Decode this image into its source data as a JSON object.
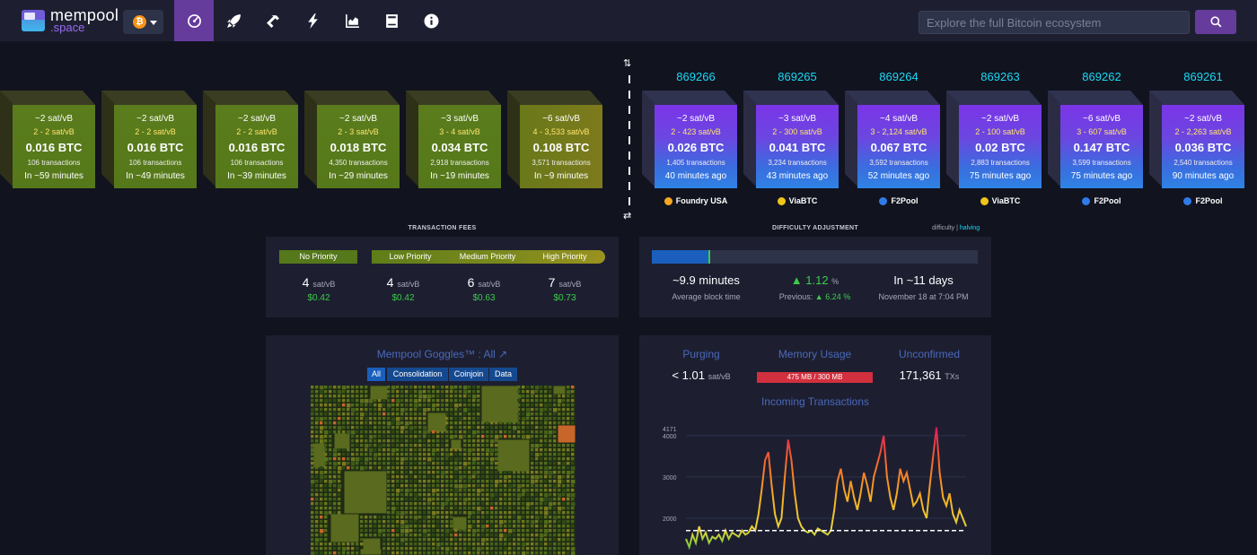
{
  "nav": {
    "logo_name": "mempool",
    "logo_sub": ".space",
    "network_symbol": "₿",
    "icons": [
      "dashboard-icon",
      "rocket-icon",
      "hammer-icon",
      "lightning-icon",
      "chart-icon",
      "docs-icon",
      "info-icon"
    ],
    "search_placeholder": "Explore the full Bitcoin ecosystem"
  },
  "mempool_blocks": [
    {
      "fee": "~2 sat/vB",
      "range": "2 - 2 sat/vB",
      "size": "0.016 BTC",
      "txs": "106 transactions",
      "eta": "In ~59 minutes"
    },
    {
      "fee": "~2 sat/vB",
      "range": "2 - 2 sat/vB",
      "size": "0.016 BTC",
      "txs": "106 transactions",
      "eta": "In ~49 minutes"
    },
    {
      "fee": "~2 sat/vB",
      "range": "2 - 2 sat/vB",
      "size": "0.016 BTC",
      "txs": "106 transactions",
      "eta": "In ~39 minutes"
    },
    {
      "fee": "~2 sat/vB",
      "range": "2 - 3 sat/vB",
      "size": "0.018 BTC",
      "txs": "4,350 transactions",
      "eta": "In ~29 minutes"
    },
    {
      "fee": "~3 sat/vB",
      "range": "3 - 4 sat/vB",
      "size": "0.034 BTC",
      "txs": "2,918 transactions",
      "eta": "In ~19 minutes"
    },
    {
      "fee": "~6 sat/vB",
      "range": "4 - 3,533 sat/vB",
      "size": "0.108 BTC",
      "txs": "3,571 transactions",
      "eta": "In ~9 minutes"
    }
  ],
  "mined_blocks": [
    {
      "height": "869266",
      "fee": "~2 sat/vB",
      "range": "2 - 423 sat/vB",
      "size": "0.026 BTC",
      "txs": "1,405 transactions",
      "ago": "40 minutes ago",
      "pool": "Foundry USA",
      "pool_color": "#f5a623"
    },
    {
      "height": "869265",
      "fee": "~3 sat/vB",
      "range": "2 - 300 sat/vB",
      "size": "0.041 BTC",
      "txs": "3,234 transactions",
      "ago": "43 minutes ago",
      "pool": "ViaBTC",
      "pool_color": "#f0c419"
    },
    {
      "height": "869264",
      "fee": "~4 sat/vB",
      "range": "3 - 2,124 sat/vB",
      "size": "0.067 BTC",
      "txs": "3,592 transactions",
      "ago": "52 minutes ago",
      "pool": "F2Pool",
      "pool_color": "#2f7be8"
    },
    {
      "height": "869263",
      "fee": "~2 sat/vB",
      "range": "2 - 100 sat/vB",
      "size": "0.02 BTC",
      "txs": "2,883 transactions",
      "ago": "75 minutes ago",
      "pool": "ViaBTC",
      "pool_color": "#f0c419"
    },
    {
      "height": "869262",
      "fee": "~6 sat/vB",
      "range": "3 - 607 sat/vB",
      "size": "0.147 BTC",
      "txs": "3,599 transactions",
      "ago": "75 minutes ago",
      "pool": "F2Pool",
      "pool_color": "#2f7be8"
    },
    {
      "height": "869261",
      "fee": "~2 sat/vB",
      "range": "2 - 2,263 sat/vB",
      "size": "0.036 BTC",
      "txs": "2,540 transactions",
      "ago": "90 minutes ago",
      "pool": "F2Pool",
      "pool_color": "#2f7be8"
    }
  ],
  "fees": {
    "title": "TRANSACTION FEES",
    "items": [
      {
        "label": "No Priority",
        "value": "4",
        "unit": "sat/vB",
        "usd": "$0.42"
      },
      {
        "label": "Low Priority",
        "value": "4",
        "unit": "sat/vB",
        "usd": "$0.42"
      },
      {
        "label": "Medium Priority",
        "value": "6",
        "unit": "sat/vB",
        "usd": "$0.63"
      },
      {
        "label": "High Priority",
        "value": "7",
        "unit": "sat/vB",
        "usd": "$0.73"
      }
    ]
  },
  "difficulty": {
    "title": "DIFFICULTY ADJUSTMENT",
    "toggle_a": "difficulty",
    "toggle_sep": "|",
    "toggle_b": "halving",
    "progress": 0.18,
    "avg_time": "~9.9 minutes",
    "avg_label": "Average block time",
    "change": "1.12",
    "change_unit": "%",
    "previous_label": "Previous:",
    "previous": "6.24",
    "eta": "In ~11 days",
    "eta_date": "November 18 at 7:04 PM"
  },
  "goggles": {
    "title": "Mempool Goggles™ : All",
    "tabs": [
      "All",
      "Consolidation",
      "Coinjoin",
      "Data"
    ]
  },
  "stats": {
    "purging_label": "Purging",
    "purging_value": "< 1.01",
    "purging_unit": "sat/vB",
    "memory_label": "Memory Usage",
    "memory_value": "475 MB / 300 MB",
    "unconfirmed_label": "Unconfirmed",
    "unconfirmed_value": "171,361",
    "unconfirmed_unit": "TXs",
    "incoming_title": "Incoming Transactions"
  },
  "chart_data": {
    "type": "line",
    "title": "Incoming Transactions",
    "ylim": [
      0,
      4171
    ],
    "y_ticks": [
      "4171",
      "4000",
      "3000",
      "2000"
    ],
    "threshold": 1700,
    "series": [
      {
        "values": [
          1500,
          1300,
          1600,
          1400,
          1800,
          1500,
          1650,
          1400,
          1550,
          1500,
          1600,
          1450,
          1700,
          1500,
          1650,
          1600,
          1550,
          1700,
          1600,
          1650,
          1800,
          1700,
          2100,
          2700,
          3400,
          3600,
          2800,
          2100,
          1800,
          2000,
          3000,
          3900,
          3400,
          2600,
          2000,
          1800,
          1700,
          1650,
          1700,
          1600,
          1750,
          1700,
          1650,
          1600,
          1700,
          2200,
          2900,
          3200,
          2700,
          2400,
          2900,
          2500,
          2200,
          2600,
          3100,
          2800,
          2400,
          3000,
          3300,
          3600,
          4000,
          3000,
          2500,
          2200,
          2600,
          3200,
          2900,
          3100,
          2700,
          2300,
          2400,
          2600,
          2200,
          2000,
          2800,
          3500,
          4200,
          3100,
          2500,
          2300,
          2600,
          2100,
          1900,
          2200,
          2000,
          1800
        ]
      }
    ]
  }
}
